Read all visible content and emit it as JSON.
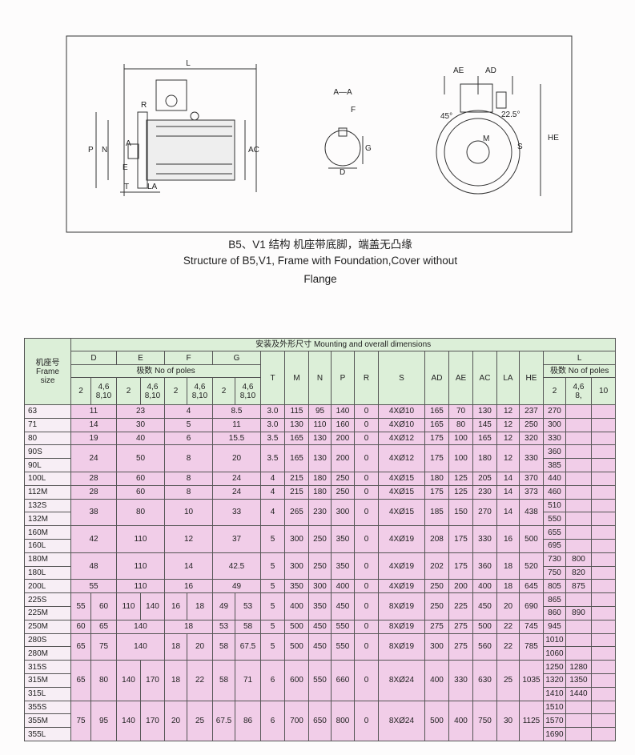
{
  "drawing": {
    "side": [
      "L",
      "R",
      "P",
      "N",
      "A",
      "E",
      "T",
      "LA",
      "AC"
    ],
    "section": [
      "A—A",
      "F",
      "G",
      "D"
    ],
    "end": [
      "AE",
      "AD",
      "45°",
      "22.5°",
      "M",
      "S",
      "HE"
    ]
  },
  "caption": [
    "B5、V1 结构 机座带底脚，端盖无凸缘",
    "Structure of B5,V1, Frame with Foundation,Cover without",
    "Flange"
  ],
  "table": {
    "header": {
      "frame": [
        "机座号",
        "Frame",
        "size"
      ],
      "title": "安装及外形尺寸 Mounting and overall dimensions",
      "groups": [
        "D",
        "E",
        "F",
        "G"
      ],
      "poles": "极数 No of poles",
      "pole_cols": [
        "2",
        [
          "4,6",
          "8,10"
        ]
      ],
      "columns": [
        "T",
        "M",
        "N",
        "P",
        "R",
        "S",
        "AD",
        "AE",
        "AC",
        "LA",
        "HE"
      ],
      "L": "L",
      "L_poles": "极数 No of poles",
      "L_cols": [
        "2",
        [
          "4,6",
          "8,"
        ],
        "10"
      ]
    },
    "rows": [
      {
        "frames": [
          "63"
        ],
        "poles": [
          [
            "11"
          ],
          [
            "23"
          ],
          [
            "4"
          ],
          [
            "8.5"
          ]
        ],
        "dims": [
          "3.0",
          "115",
          "95",
          "140",
          "0",
          "4XØ10",
          "165",
          "70",
          "130",
          "12",
          "237"
        ],
        "L": [
          [
            "270"
          ]
        ]
      },
      {
        "frames": [
          "71"
        ],
        "poles": [
          [
            "14"
          ],
          [
            "30"
          ],
          [
            "5"
          ],
          [
            "11"
          ]
        ],
        "dims": [
          "3.0",
          "130",
          "110",
          "160",
          "0",
          "4XØ10",
          "165",
          "80",
          "145",
          "12",
          "250"
        ],
        "L": [
          [
            "300"
          ]
        ]
      },
      {
        "frames": [
          "80"
        ],
        "poles": [
          [
            "19"
          ],
          [
            "40"
          ],
          [
            "6"
          ],
          [
            "15.5"
          ]
        ],
        "dims": [
          "3.5",
          "165",
          "130",
          "200",
          "0",
          "4XØ12",
          "175",
          "100",
          "165",
          "12",
          "320"
        ],
        "L": [
          [
            "330"
          ]
        ]
      },
      {
        "frames": [
          "90S",
          "90L"
        ],
        "poles": [
          [
            "24"
          ],
          [
            "50"
          ],
          [
            "8"
          ],
          [
            "20"
          ]
        ],
        "dims": [
          "3.5",
          "165",
          "130",
          "200",
          "0",
          "4XØ12",
          "175",
          "100",
          "180",
          "12",
          "330"
        ],
        "L": [
          [
            "360"
          ],
          [
            "385"
          ]
        ]
      },
      {
        "frames": [
          "100L"
        ],
        "poles": [
          [
            "28"
          ],
          [
            "60"
          ],
          [
            "8"
          ],
          [
            "24"
          ]
        ],
        "dims": [
          "4",
          "215",
          "180",
          "250",
          "0",
          "4XØ15",
          "180",
          "125",
          "205",
          "14",
          "370"
        ],
        "L": [
          [
            "440"
          ]
        ]
      },
      {
        "frames": [
          "112M"
        ],
        "poles": [
          [
            "28"
          ],
          [
            "60"
          ],
          [
            "8"
          ],
          [
            "24"
          ]
        ],
        "dims": [
          "4",
          "215",
          "180",
          "250",
          "0",
          "4XØ15",
          "175",
          "125",
          "230",
          "14",
          "373"
        ],
        "L": [
          [
            "460"
          ]
        ]
      },
      {
        "frames": [
          "132S",
          "132M"
        ],
        "poles": [
          [
            "38"
          ],
          [
            "80"
          ],
          [
            "10"
          ],
          [
            "33"
          ]
        ],
        "dims": [
          "4",
          "265",
          "230",
          "300",
          "0",
          "4XØ15",
          "185",
          "150",
          "270",
          "14",
          "438"
        ],
        "L": [
          [
            "510"
          ],
          [
            "550"
          ]
        ]
      },
      {
        "frames": [
          "160M",
          "160L"
        ],
        "poles": [
          [
            "42"
          ],
          [
            "110"
          ],
          [
            "12"
          ],
          [
            "37"
          ]
        ],
        "dims": [
          "5",
          "300",
          "250",
          "350",
          "0",
          "4XØ19",
          "208",
          "175",
          "330",
          "16",
          "500"
        ],
        "L": [
          [
            "655"
          ],
          [
            "695"
          ]
        ]
      },
      {
        "frames": [
          "180M",
          "180L"
        ],
        "poles": [
          [
            "48"
          ],
          [
            "110"
          ],
          [
            "14"
          ],
          [
            "42.5"
          ]
        ],
        "dims": [
          "5",
          "300",
          "250",
          "350",
          "0",
          "4XØ19",
          "202",
          "175",
          "360",
          "18",
          "520"
        ],
        "L": [
          [
            "730",
            "800"
          ],
          [
            "750",
            "820"
          ]
        ]
      },
      {
        "frames": [
          "200L"
        ],
        "poles": [
          [
            "55"
          ],
          [
            "110"
          ],
          [
            "16"
          ],
          [
            "49"
          ]
        ],
        "dims": [
          "5",
          "350",
          "300",
          "400",
          "0",
          "4XØ19",
          "250",
          "200",
          "400",
          "18",
          "645"
        ],
        "L": [
          [
            "805",
            "875"
          ]
        ]
      },
      {
        "frames": [
          "225S",
          "225M"
        ],
        "poles": [
          [
            "55",
            "60"
          ],
          [
            "110",
            "140"
          ],
          [
            "16",
            "18"
          ],
          [
            "49",
            "53"
          ]
        ],
        "dims": [
          "5",
          "400",
          "350",
          "450",
          "0",
          "8XØ19",
          "250",
          "225",
          "450",
          "20",
          "690"
        ],
        "L": [
          [
            "865"
          ],
          [
            "860",
            "890"
          ]
        ]
      },
      {
        "frames": [
          "250M"
        ],
        "poles": [
          [
            "60",
            "65"
          ],
          [
            "140"
          ],
          [
            "18"
          ],
          [
            "53",
            "58"
          ]
        ],
        "dims": [
          "5",
          "500",
          "450",
          "550",
          "0",
          "8XØ19",
          "275",
          "275",
          "500",
          "22",
          "745"
        ],
        "L": [
          [
            "945"
          ]
        ]
      },
      {
        "frames": [
          "280S",
          "280M"
        ],
        "poles": [
          [
            "65",
            "75"
          ],
          [
            "140"
          ],
          [
            "18",
            "20"
          ],
          [
            "58",
            "67.5"
          ]
        ],
        "dims": [
          "5",
          "500",
          "450",
          "550",
          "0",
          "8XØ19",
          "300",
          "275",
          "560",
          "22",
          "785"
        ],
        "L": [
          [
            "1010"
          ],
          [
            "1060"
          ]
        ]
      },
      {
        "frames": [
          "315S",
          "315M",
          "315L"
        ],
        "poles": [
          [
            "65",
            "80"
          ],
          [
            "140",
            "170"
          ],
          [
            "18",
            "22"
          ],
          [
            "58",
            "71"
          ]
        ],
        "dims": [
          "6",
          "600",
          "550",
          "660",
          "0",
          "8XØ24",
          "400",
          "330",
          "630",
          "25",
          "1035"
        ],
        "L": [
          [
            "1250",
            "1280"
          ],
          [
            "1320",
            "1350"
          ],
          [
            "1410",
            "1440"
          ]
        ]
      },
      {
        "frames": [
          "355S",
          "355M",
          "355L"
        ],
        "poles": [
          [
            "75",
            "95"
          ],
          [
            "140",
            "170"
          ],
          [
            "20",
            "25"
          ],
          [
            "67.5",
            "86"
          ]
        ],
        "dims": [
          "6",
          "700",
          "650",
          "800",
          "0",
          "8XØ24",
          "500",
          "400",
          "750",
          "30",
          "1125"
        ],
        "L": [
          [
            "1510"
          ],
          [
            "1570"
          ],
          [
            "1690"
          ]
        ]
      }
    ]
  }
}
